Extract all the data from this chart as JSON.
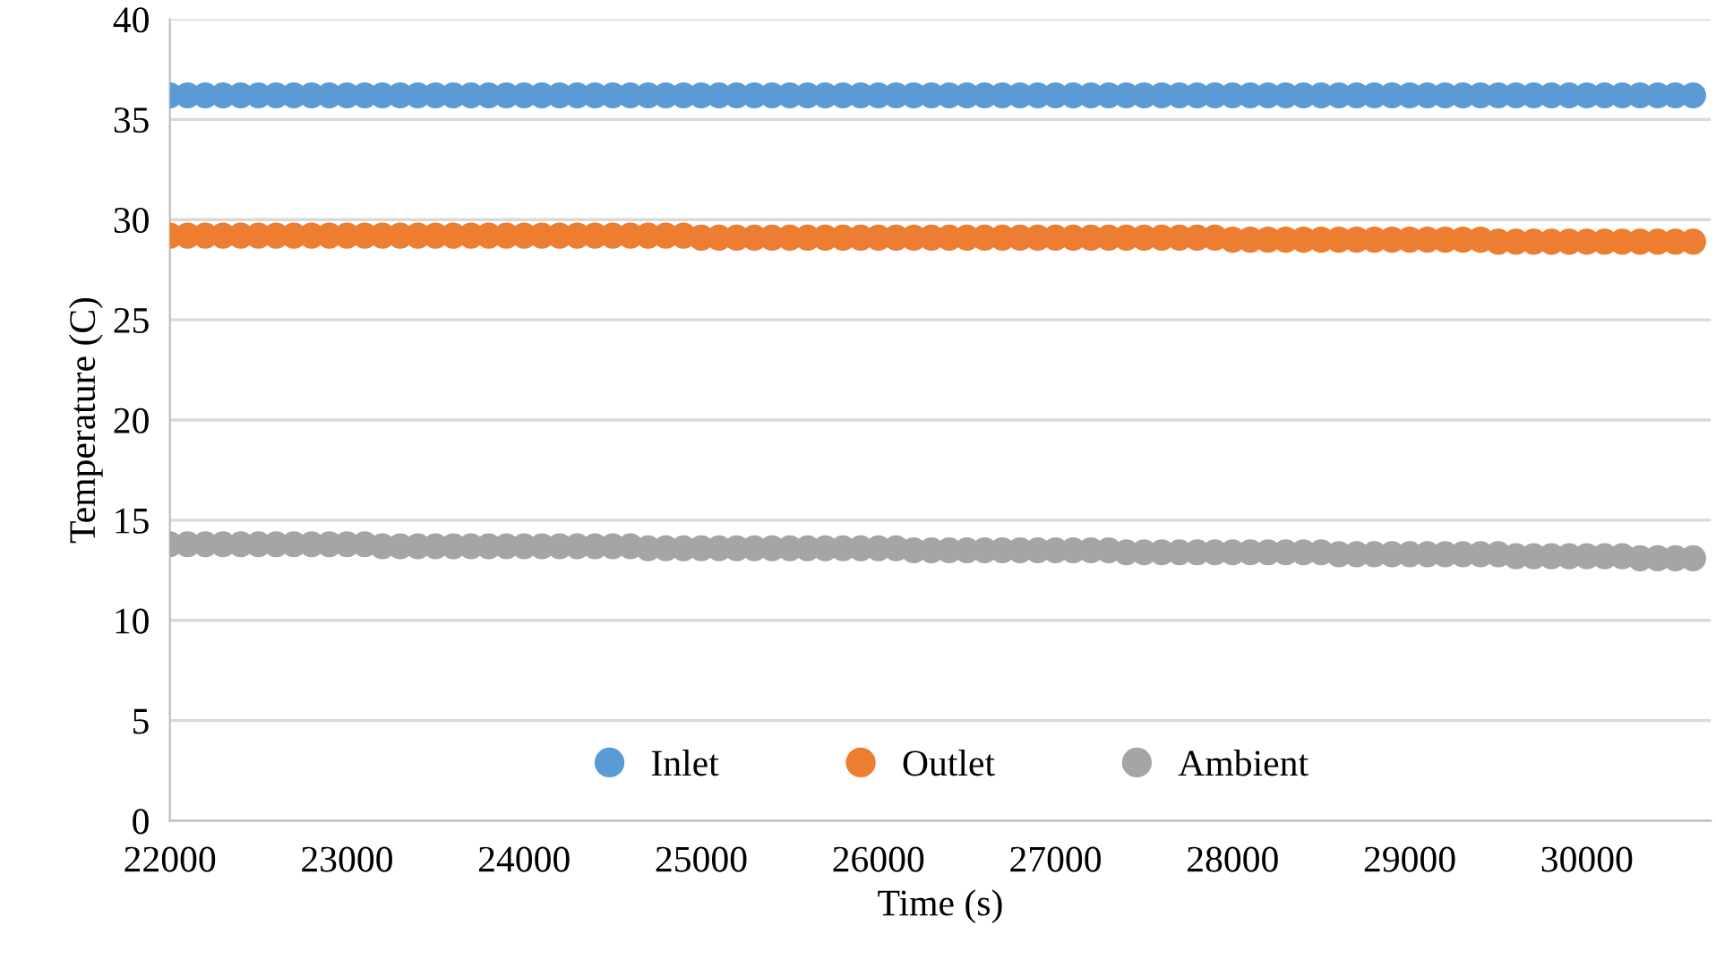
{
  "chart_data": {
    "type": "scatter",
    "xlabel": "Time (s)",
    "ylabel": "Temperature (C)",
    "x": [
      22000,
      22100,
      22200,
      22300,
      22400,
      22500,
      22600,
      22700,
      22800,
      22900,
      23000,
      23100,
      23200,
      23300,
      23400,
      23500,
      23600,
      23700,
      23800,
      23900,
      24000,
      24100,
      24200,
      24300,
      24400,
      24500,
      24600,
      24700,
      24800,
      24900,
      25000,
      25100,
      25200,
      25300,
      25400,
      25500,
      25600,
      25700,
      25800,
      25900,
      26000,
      26100,
      26200,
      26300,
      26400,
      26500,
      26600,
      26700,
      26800,
      26900,
      27000,
      27100,
      27200,
      27300,
      27400,
      27500,
      27600,
      27700,
      27800,
      27900,
      28000,
      28100,
      28200,
      28300,
      28400,
      28500,
      28600,
      28700,
      28800,
      28900,
      29000,
      29100,
      29200,
      29300,
      29400,
      29500,
      29600,
      29700,
      29800,
      29900,
      30000,
      30100,
      30200,
      30300,
      30400,
      30500,
      30600
    ],
    "series": [
      {
        "name": "Inlet",
        "color": "#5b9bd5",
        "values": [
          36.2,
          36.2,
          36.2,
          36.2,
          36.2,
          36.2,
          36.2,
          36.2,
          36.2,
          36.2,
          36.2,
          36.2,
          36.2,
          36.2,
          36.2,
          36.2,
          36.2,
          36.2,
          36.2,
          36.2,
          36.2,
          36.2,
          36.2,
          36.2,
          36.2,
          36.2,
          36.2,
          36.2,
          36.2,
          36.2,
          36.2,
          36.2,
          36.2,
          36.2,
          36.2,
          36.2,
          36.2,
          36.2,
          36.2,
          36.2,
          36.2,
          36.2,
          36.2,
          36.2,
          36.2,
          36.2,
          36.2,
          36.2,
          36.2,
          36.2,
          36.2,
          36.2,
          36.2,
          36.2,
          36.2,
          36.2,
          36.2,
          36.2,
          36.2,
          36.2,
          36.2,
          36.2,
          36.2,
          36.2,
          36.2,
          36.2,
          36.2,
          36.2,
          36.2,
          36.2,
          36.2,
          36.2,
          36.2,
          36.2,
          36.2,
          36.2,
          36.2,
          36.2,
          36.2,
          36.2,
          36.2,
          36.2,
          36.2,
          36.2,
          36.2,
          36.2,
          36.2
        ]
      },
      {
        "name": "Outlet",
        "color": "#ed7d31",
        "values": [
          29.2,
          29.2,
          29.2,
          29.2,
          29.2,
          29.2,
          29.2,
          29.2,
          29.2,
          29.2,
          29.2,
          29.2,
          29.2,
          29.2,
          29.2,
          29.2,
          29.2,
          29.2,
          29.2,
          29.2,
          29.2,
          29.2,
          29.2,
          29.2,
          29.2,
          29.2,
          29.2,
          29.2,
          29.2,
          29.2,
          29.1,
          29.1,
          29.1,
          29.1,
          29.1,
          29.1,
          29.1,
          29.1,
          29.1,
          29.1,
          29.1,
          29.1,
          29.1,
          29.1,
          29.1,
          29.1,
          29.1,
          29.1,
          29.1,
          29.1,
          29.1,
          29.1,
          29.1,
          29.1,
          29.1,
          29.1,
          29.1,
          29.1,
          29.1,
          29.1,
          29.0,
          29.0,
          29.0,
          29.0,
          29.0,
          29.0,
          29.0,
          29.0,
          29.0,
          29.0,
          29.0,
          29.0,
          29.0,
          29.0,
          29.0,
          28.9,
          28.9,
          28.9,
          28.9,
          28.9,
          28.9,
          28.9,
          28.9,
          28.9,
          28.9,
          28.9,
          28.9
        ]
      },
      {
        "name": "Ambient",
        "color": "#a5a5a5",
        "values": [
          13.8,
          13.8,
          13.8,
          13.8,
          13.8,
          13.8,
          13.8,
          13.8,
          13.8,
          13.8,
          13.8,
          13.8,
          13.7,
          13.7,
          13.7,
          13.7,
          13.7,
          13.7,
          13.7,
          13.7,
          13.7,
          13.7,
          13.7,
          13.7,
          13.7,
          13.7,
          13.7,
          13.6,
          13.6,
          13.6,
          13.6,
          13.6,
          13.6,
          13.6,
          13.6,
          13.6,
          13.6,
          13.6,
          13.6,
          13.6,
          13.6,
          13.6,
          13.5,
          13.5,
          13.5,
          13.5,
          13.5,
          13.5,
          13.5,
          13.5,
          13.5,
          13.5,
          13.5,
          13.5,
          13.4,
          13.4,
          13.4,
          13.4,
          13.4,
          13.4,
          13.4,
          13.4,
          13.4,
          13.4,
          13.4,
          13.4,
          13.3,
          13.3,
          13.3,
          13.3,
          13.3,
          13.3,
          13.3,
          13.3,
          13.3,
          13.3,
          13.2,
          13.2,
          13.2,
          13.2,
          13.2,
          13.2,
          13.2,
          13.1,
          13.1,
          13.1,
          13.1
        ]
      }
    ],
    "xlim": [
      22000,
      30700
    ],
    "xticks": [
      22000,
      23000,
      24000,
      25000,
      26000,
      27000,
      28000,
      29000,
      30000
    ],
    "ylim": [
      0,
      40
    ],
    "yticks": [
      0,
      5,
      10,
      15,
      20,
      25,
      30,
      35,
      40
    ],
    "grid": "y",
    "legend": "bottom",
    "marker": "circle"
  }
}
